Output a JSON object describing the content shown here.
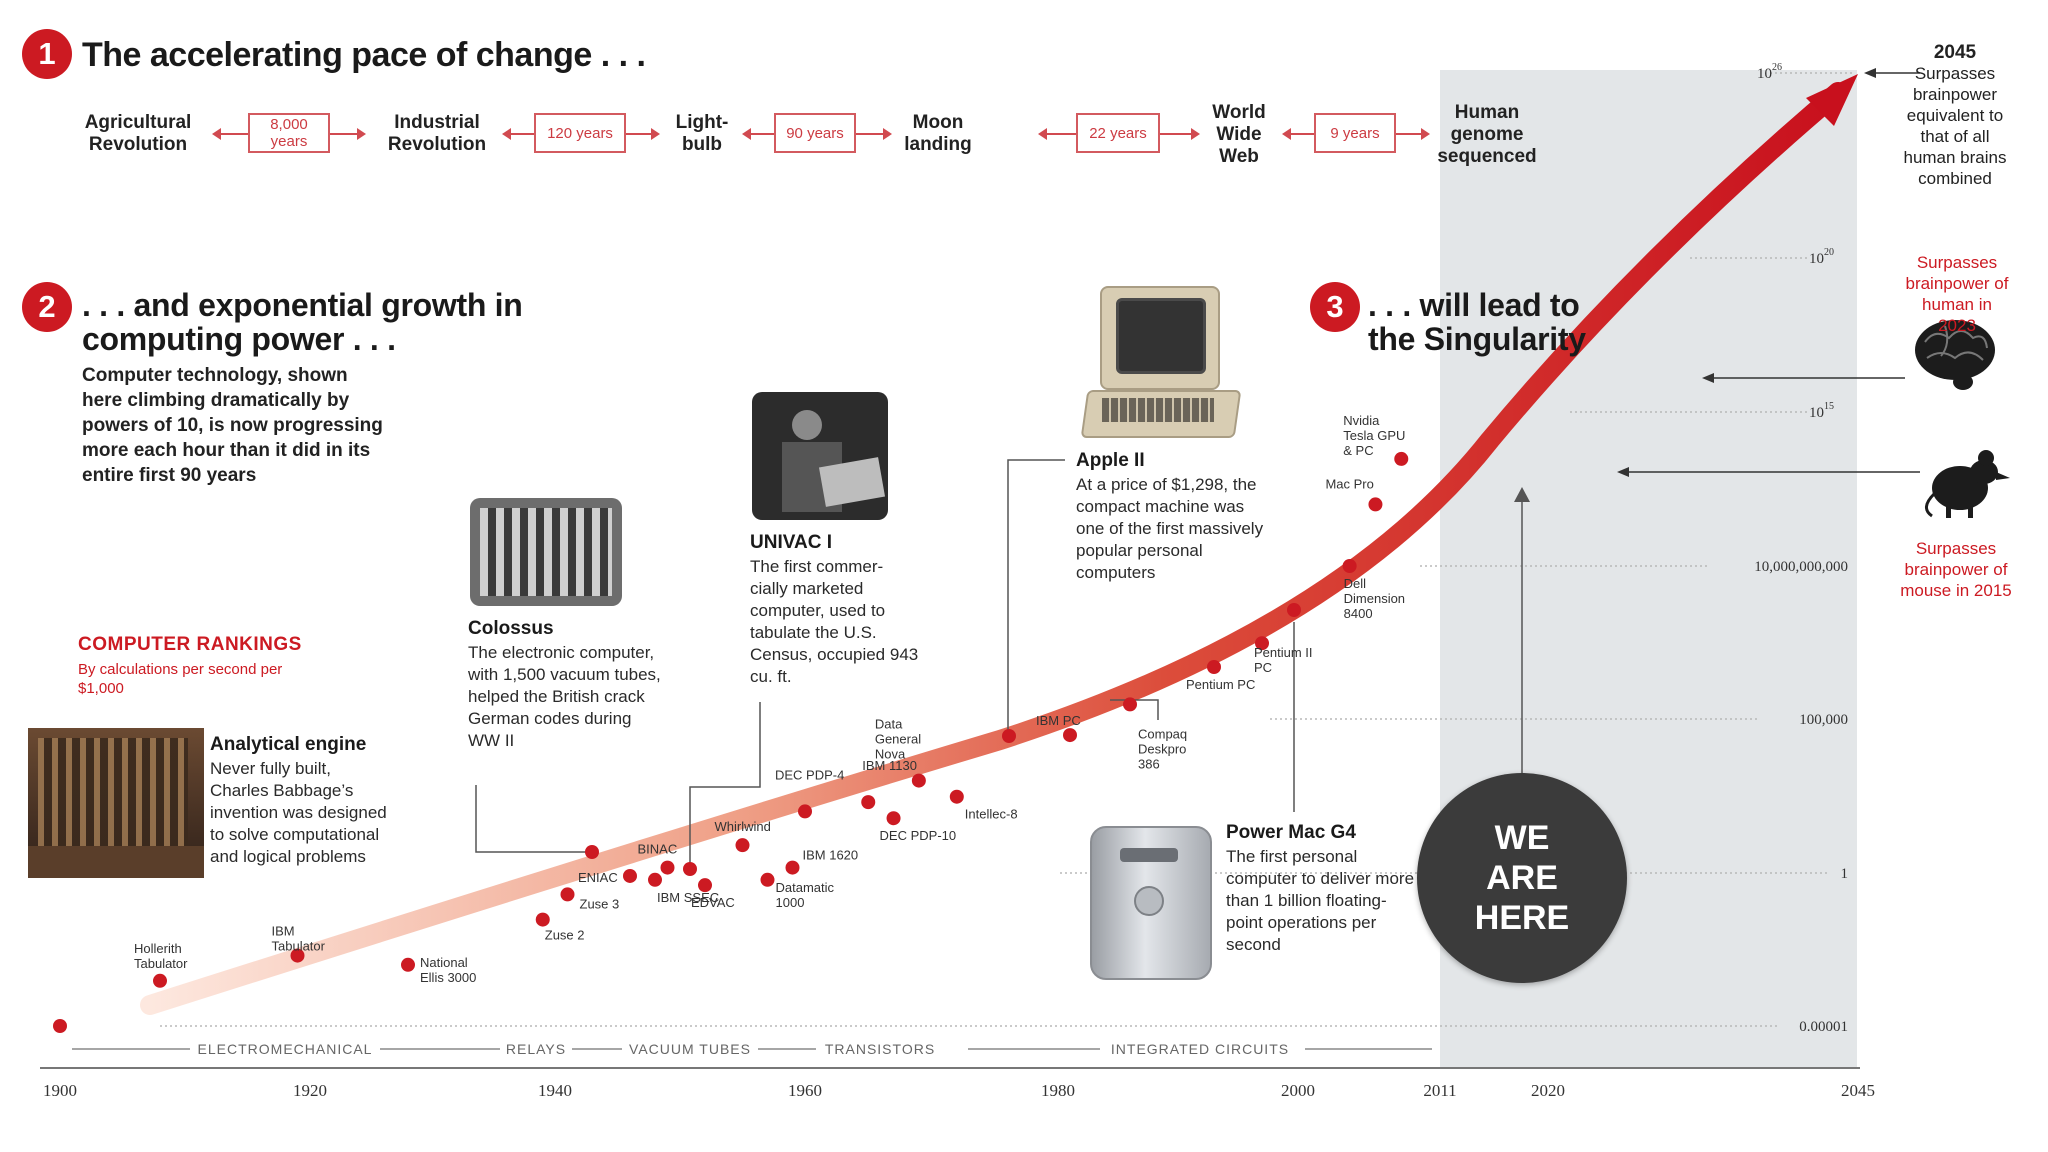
{
  "section1": {
    "number": "1",
    "title": "The accelerating pace of change . . ."
  },
  "timeline": {
    "events": [
      "Agricultural Revolution",
      "Industrial Revolution",
      "Light- bulb",
      "Moon landing",
      "World Wide Web",
      "Human genome sequenced"
    ],
    "gaps": [
      "8,000 years",
      "120 years",
      "90 years",
      "22 years",
      "9 years"
    ]
  },
  "section2": {
    "number": "2",
    "title": ". . . and exponential growth in computing power . . .",
    "text": "Computer technology, shown here climbing dramatically by powers of 10, is now progressing more each hour than it did in its entire first 90 years"
  },
  "section3": {
    "number": "3",
    "title": ". . . will lead to the Singularity"
  },
  "rankings": {
    "title": "COMPUTER RANKINGS",
    "subtitle": "By calculations per second per $1,000"
  },
  "callouts": {
    "analytical": {
      "title": "Analytical engine",
      "text": "Never fully built, Charles Babbage’s invention was designed to solve computational and logical problems"
    },
    "colossus": {
      "title": "Colossus",
      "text": "The electronic computer, with 1,500 vacuum tubes, helped the British crack German codes during WW II"
    },
    "univac": {
      "title": "UNIVAC I",
      "text": "The first commer- cially marketed computer, used to tabulate the U.S. Census, occupied 943 cu. ft."
    },
    "apple": {
      "title": "Apple II",
      "text": "At a price of $1,298, the compact machine was one of the first massively popular personal computers"
    },
    "powermac": {
      "title": "Power Mac G4",
      "text": "The first personal computer to deliver more than 1 billion floating-point operations per second"
    }
  },
  "right_annotations": {
    "year_2045": "2045",
    "text_2045": "Surpasses brainpower equivalent to that of all human brains combined",
    "human": "Surpasses brainpower of human in 2023",
    "mouse": "Surpasses brainpower of mouse in 2015"
  },
  "we_are_here": "WE ARE HERE",
  "colors": {
    "accent": "#cc1a22",
    "shade": "#e3e6e8",
    "badge": "#3b3b3b"
  },
  "icons": [
    "brain-icon",
    "mouse-icon"
  ],
  "chart_data": {
    "type": "scatter",
    "y_scale": "log",
    "x_ticks": [
      "1900",
      "1920",
      "1940",
      "1960",
      "1980",
      "2000",
      "2011",
      "2020",
      "2045"
    ],
    "y_ticks": [
      "0.00001",
      "1",
      "100,000",
      "10,000,000,000",
      "10^15",
      "10^20",
      "10^26"
    ],
    "eras": [
      "ELECTROMECHANICAL",
      "RELAYS",
      "VACUUM TUBES",
      "TRANSISTORS",
      "INTEGRATED CIRCUITS"
    ],
    "points": [
      {
        "label": "",
        "x": 1900,
        "y": 1e-05
      },
      {
        "label": "Hollerith Tabulator",
        "x": 1908,
        "y": 0.0003
      },
      {
        "label": "IBM Tabulator",
        "x": 1919,
        "y": 0.002
      },
      {
        "label": "National Ellis 3000",
        "x": 1928,
        "y": 0.001
      },
      {
        "label": "Zuse 2",
        "x": 1939,
        "y": 0.03
      },
      {
        "label": "Zuse 3",
        "x": 1941,
        "y": 0.2
      },
      {
        "label": "ENIAC",
        "x": 1946,
        "y": 0.8
      },
      {
        "label": "Colossus",
        "x": 1943,
        "y": 3
      },
      {
        "label": "BINAC",
        "x": 1949,
        "y": 1.5
      },
      {
        "label": "IBM SSEC",
        "x": 1948,
        "y": 0.6
      },
      {
        "label": "UNIVAC I",
        "x": 1951,
        "y": 1.2
      },
      {
        "label": "EDVAC",
        "x": 1952,
        "y": 0.4
      },
      {
        "label": "Whirlwind",
        "x": 1955,
        "y": 8
      },
      {
        "label": "Datamatic 1000",
        "x": 1957,
        "y": 0.6
      },
      {
        "label": "IBM 1620",
        "x": 1959,
        "y": 1.5
      },
      {
        "label": "DEC PDP-4",
        "x": 1960,
        "y": 100
      },
      {
        "label": "IBM 1130",
        "x": 1965,
        "y": 200
      },
      {
        "label": "DEC PDP-10",
        "x": 1967,
        "y": 60
      },
      {
        "label": "Data General Nova",
        "x": 1969,
        "y": 1000
      },
      {
        "label": "Intellec-8",
        "x": 1972,
        "y": 300
      },
      {
        "label": "Apple II",
        "x": 1977,
        "y": 10000
      },
      {
        "label": "IBM PC",
        "x": 1981,
        "y": 30000
      },
      {
        "label": "Compaq Deskpro 386",
        "x": 1986,
        "y": 300000
      },
      {
        "label": "Pentium PC",
        "x": 1993,
        "y": 5000000
      },
      {
        "label": "Pentium II PC",
        "x": 1997,
        "y": 30000000
      },
      {
        "label": "Power Mac G4",
        "x": 2000,
        "y": 1000000000
      },
      {
        "label": "Dell Dimension 8400",
        "x": 2004,
        "y": 10000000000
      },
      {
        "label": "Mac Pro",
        "x": 2006,
        "y": 1000000000000
      },
      {
        "label": "Nvidia Tesla GPU & PC",
        "x": 2008,
        "y": 30000000000000
      }
    ]
  }
}
